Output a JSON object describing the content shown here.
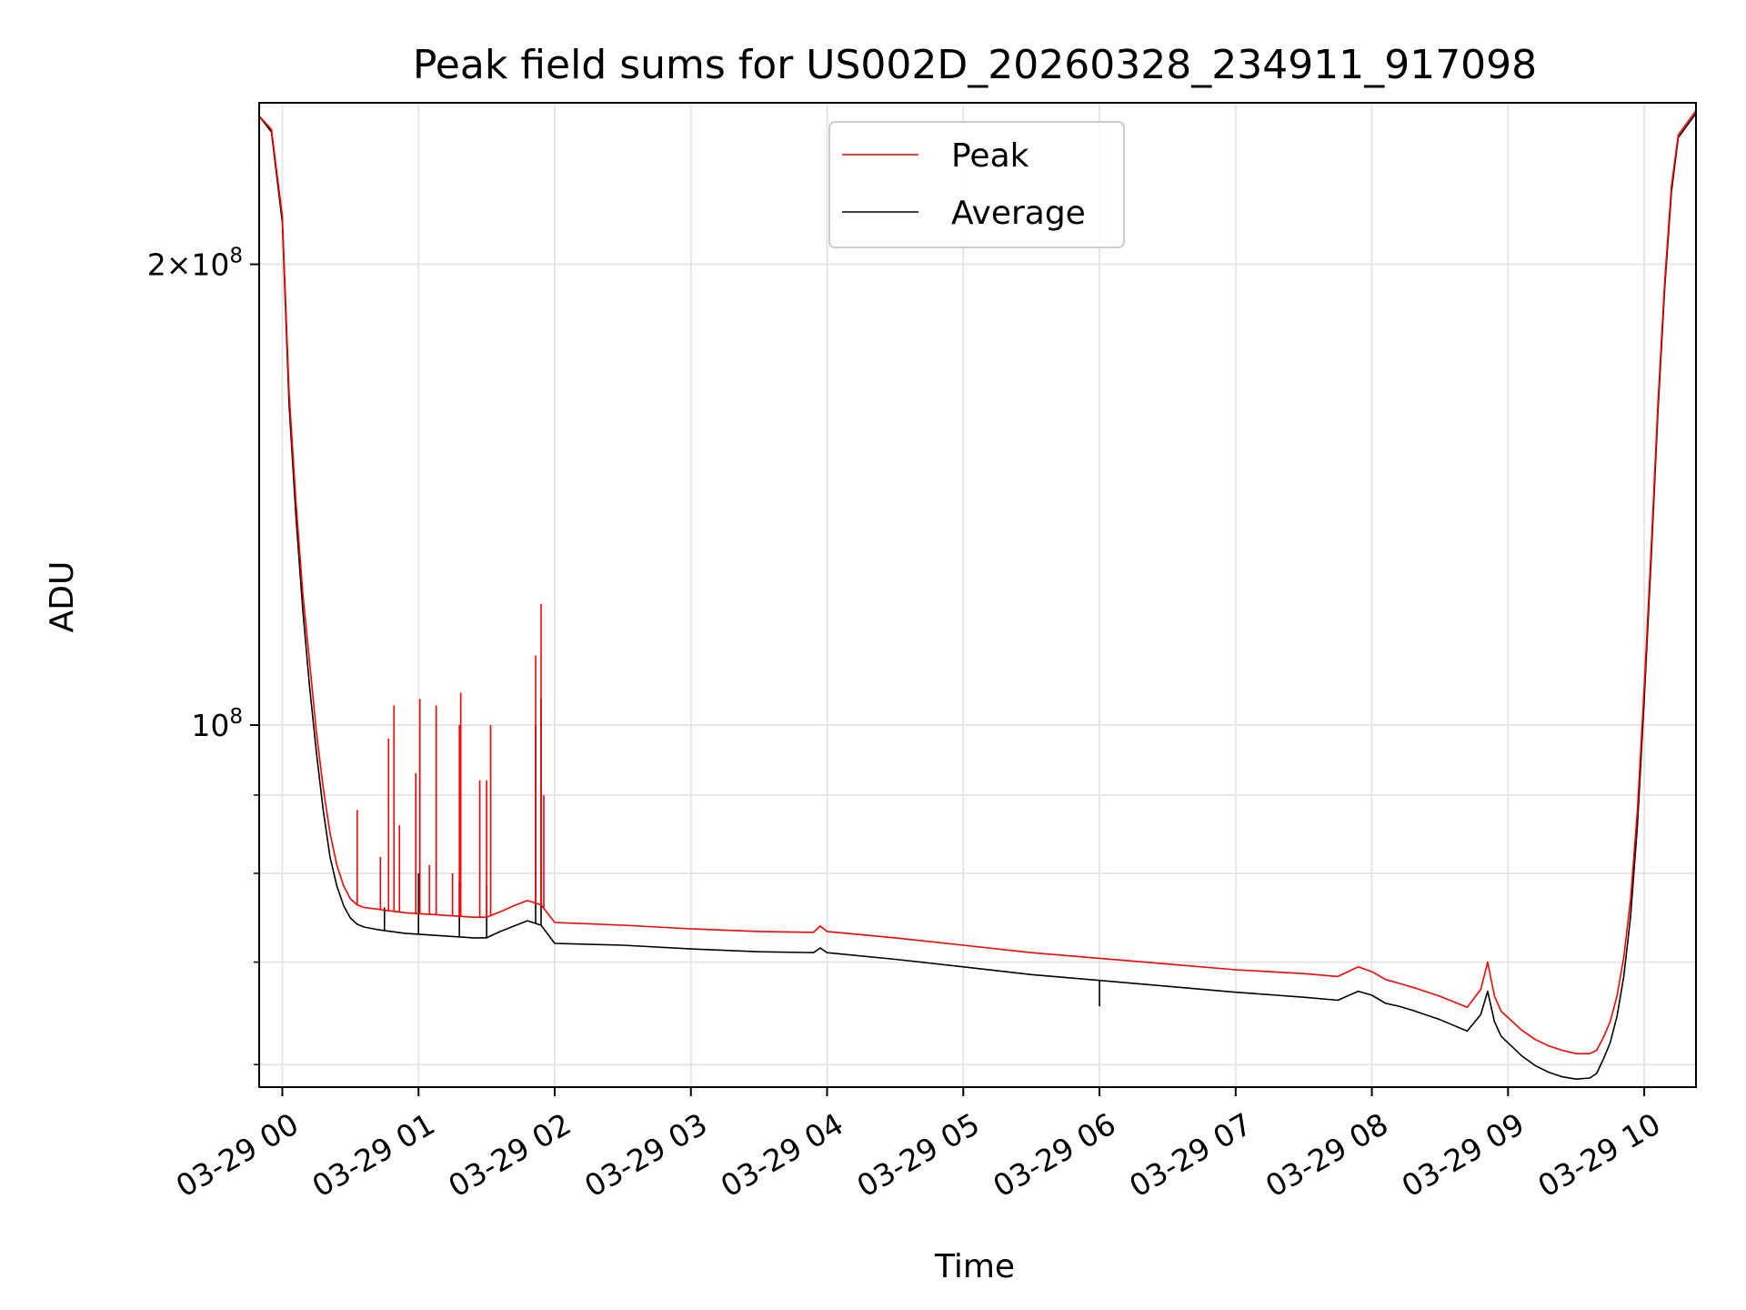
{
  "chart_data": {
    "type": "line",
    "title": "Peak field sums for US002D_20260328_234911_917098",
    "xlabel": "Time",
    "ylabel": "ADU",
    "yscale": "log",
    "ylim": [
      58000000,
      255000000
    ],
    "xlim": [
      -0.17,
      10.38
    ],
    "x_unit": "hours after 03-29 00:00",
    "x_ticks": [
      {
        "value": 0,
        "label": "03-29 00"
      },
      {
        "value": 1,
        "label": "03-29 01"
      },
      {
        "value": 2,
        "label": "03-29 02"
      },
      {
        "value": 3,
        "label": "03-29 03"
      },
      {
        "value": 4,
        "label": "03-29 04"
      },
      {
        "value": 5,
        "label": "03-29 05"
      },
      {
        "value": 6,
        "label": "03-29 06"
      },
      {
        "value": 7,
        "label": "03-29 07"
      },
      {
        "value": 8,
        "label": "03-29 08"
      },
      {
        "value": 9,
        "label": "03-29 09"
      },
      {
        "value": 10,
        "label": "03-29 10"
      }
    ],
    "y_major_ticks": [
      {
        "value": 100000000,
        "base": "10",
        "exp": "8",
        "mantissa": ""
      },
      {
        "value": 200000000,
        "base": "10",
        "exp": "8",
        "mantissa": "2×"
      }
    ],
    "y_minor_ticks": [
      60000000,
      70000000,
      80000000,
      90000000
    ],
    "grid": true,
    "legend_position": "top-center",
    "series": [
      {
        "name": "Peak",
        "color": "#ff0000",
        "x": [
          -0.17,
          -0.08,
          0.0,
          0.05,
          0.1,
          0.15,
          0.2,
          0.25,
          0.3,
          0.35,
          0.4,
          0.45,
          0.5,
          0.55,
          0.6,
          0.7,
          0.8,
          0.9,
          1.0,
          1.1,
          1.2,
          1.3,
          1.4,
          1.5,
          1.6,
          1.7,
          1.8,
          1.9,
          2.0,
          2.5,
          3.0,
          3.5,
          3.9,
          3.95,
          4.0,
          4.5,
          5.0,
          5.5,
          6.0,
          6.5,
          7.0,
          7.5,
          7.75,
          7.9,
          8.0,
          8.1,
          8.2,
          8.3,
          8.5,
          8.7,
          8.8,
          8.85,
          8.9,
          8.95,
          9.0,
          9.1,
          9.2,
          9.3,
          9.4,
          9.5,
          9.6,
          9.65,
          9.7,
          9.75,
          9.8,
          9.85,
          9.9,
          9.95,
          10.0,
          10.05,
          10.1,
          10.15,
          10.2,
          10.25,
          10.38
        ],
        "y": [
          250000000,
          245000000,
          215000000,
          165000000,
          140000000,
          122000000,
          110000000,
          99000000,
          91000000,
          85000000,
          81000000,
          78500000,
          77000000,
          76300000,
          76000000,
          75800000,
          75600000,
          75400000,
          75300000,
          75200000,
          75100000,
          75000000,
          74900000,
          74900000,
          75500000,
          76200000,
          76800000,
          76300000,
          74300000,
          74000000,
          73600000,
          73300000,
          73200000,
          73900000,
          73300000,
          72600000,
          71800000,
          71000000,
          70400000,
          69800000,
          69200000,
          68800000,
          68500000,
          69500000,
          69000000,
          68200000,
          67800000,
          67400000,
          66500000,
          65400000,
          67200000,
          70000000,
          66500000,
          65000000,
          64400000,
          63200000,
          62300000,
          61700000,
          61300000,
          61000000,
          61000000,
          61300000,
          62500000,
          64000000,
          66500000,
          70500000,
          77000000,
          88000000,
          106000000,
          130000000,
          162000000,
          195000000,
          225000000,
          243000000,
          252000000
        ]
      },
      {
        "name": "Average",
        "color": "#000000",
        "x": [
          -0.17,
          -0.08,
          0.0,
          0.05,
          0.1,
          0.15,
          0.2,
          0.25,
          0.3,
          0.35,
          0.4,
          0.45,
          0.5,
          0.55,
          0.6,
          0.7,
          0.8,
          0.9,
          1.0,
          1.1,
          1.2,
          1.3,
          1.4,
          1.5,
          1.6,
          1.7,
          1.8,
          1.9,
          2.0,
          2.5,
          3.0,
          3.5,
          3.9,
          3.95,
          4.0,
          4.5,
          5.0,
          5.5,
          6.0,
          6.5,
          7.0,
          7.5,
          7.75,
          7.9,
          8.0,
          8.1,
          8.2,
          8.3,
          8.5,
          8.7,
          8.8,
          8.85,
          8.9,
          8.95,
          9.0,
          9.1,
          9.2,
          9.3,
          9.4,
          9.5,
          9.6,
          9.65,
          9.7,
          9.75,
          9.8,
          9.85,
          9.9,
          9.95,
          10.0,
          10.05,
          10.1,
          10.15,
          10.2,
          10.25,
          10.38
        ],
        "y": [
          250000000,
          244000000,
          213000000,
          162000000,
          137000000,
          119000000,
          106000000,
          96000000,
          88000000,
          82000000,
          78500000,
          76200000,
          74800000,
          74100000,
          73800000,
          73500000,
          73300000,
          73100000,
          73000000,
          72900000,
          72800000,
          72700000,
          72600000,
          72600000,
          73300000,
          73900000,
          74500000,
          74000000,
          72000000,
          71800000,
          71400000,
          71100000,
          71000000,
          71500000,
          71000000,
          70300000,
          69500000,
          68700000,
          68100000,
          67500000,
          66900000,
          66400000,
          66100000,
          67000000,
          66600000,
          65800000,
          65500000,
          65100000,
          64200000,
          63100000,
          64700000,
          67000000,
          64000000,
          62600000,
          62000000,
          60800000,
          59900000,
          59300000,
          58900000,
          58700000,
          58800000,
          59200000,
          60500000,
          62000000,
          64500000,
          68500000,
          75000000,
          86000000,
          104000000,
          128000000,
          160000000,
          193000000,
          223000000,
          242000000,
          251000000
        ]
      }
    ],
    "spikes": {
      "Peak": [
        {
          "x": 0.55,
          "y": 88000000
        },
        {
          "x": 0.72,
          "y": 82000000
        },
        {
          "x": 0.78,
          "y": 98000000
        },
        {
          "x": 0.82,
          "y": 103000000
        },
        {
          "x": 0.86,
          "y": 86000000
        },
        {
          "x": 0.98,
          "y": 93000000
        },
        {
          "x": 1.01,
          "y": 104000000
        },
        {
          "x": 1.08,
          "y": 81000000
        },
        {
          "x": 1.13,
          "y": 103000000
        },
        {
          "x": 1.25,
          "y": 80000000
        },
        {
          "x": 1.3,
          "y": 100000000
        },
        {
          "x": 1.31,
          "y": 105000000
        },
        {
          "x": 1.45,
          "y": 92000000
        },
        {
          "x": 1.5,
          "y": 92000000
        },
        {
          "x": 1.53,
          "y": 100000000
        },
        {
          "x": 1.86,
          "y": 111000000
        },
        {
          "x": 1.9,
          "y": 120000000
        },
        {
          "x": 1.92,
          "y": 90000000
        }
      ],
      "Average": [
        {
          "x": 0.75,
          "y": 76000000
        },
        {
          "x": 1.0,
          "y": 80000000
        },
        {
          "x": 1.3,
          "y": 79000000
        },
        {
          "x": 1.5,
          "y": 78500000
        },
        {
          "x": 1.86,
          "y": 100000000
        },
        {
          "x": 1.9,
          "y": 104000000
        },
        {
          "x": 6.0,
          "y": 65500000
        }
      ]
    }
  }
}
